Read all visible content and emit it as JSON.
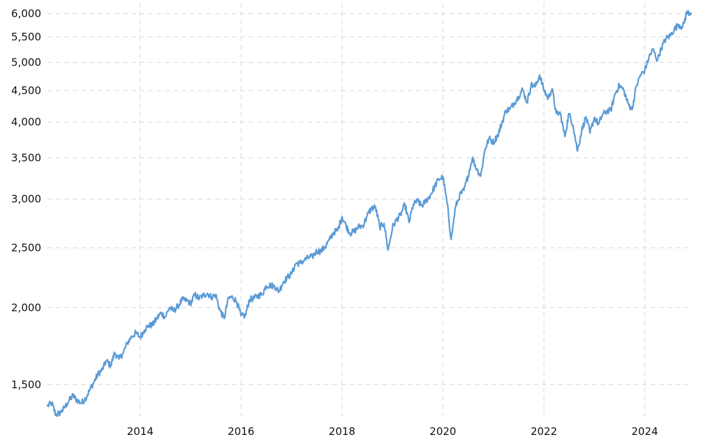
{
  "chart_data": {
    "type": "line",
    "title": "",
    "xlabel": "",
    "ylabel": "",
    "y_scale": "log",
    "grid": true,
    "legend": "none",
    "line_color": "#5b9bd5",
    "grid_color": "#d9d9d9",
    "xlim": [
      "2012-03-01",
      "2024-12-01"
    ],
    "ylim": [
      1330,
      6150
    ],
    "x_ticks": [
      {
        "value": "2014-01-01",
        "label": "2014"
      },
      {
        "value": "2016-01-01",
        "label": "2016"
      },
      {
        "value": "2018-01-01",
        "label": "2018"
      },
      {
        "value": "2020-01-01",
        "label": "2020"
      },
      {
        "value": "2022-01-01",
        "label": "2022"
      },
      {
        "value": "2024-01-01",
        "label": "2024"
      }
    ],
    "y_ticks": [
      {
        "value": 1500,
        "label": "1,500"
      },
      {
        "value": 2000,
        "label": "2,000"
      },
      {
        "value": 2500,
        "label": "2,500"
      },
      {
        "value": 3000,
        "label": "3,000"
      },
      {
        "value": 3500,
        "label": "3,500"
      },
      {
        "value": 4000,
        "label": "4,000"
      },
      {
        "value": 4500,
        "label": "4,500"
      },
      {
        "value": 5000,
        "label": "5,000"
      },
      {
        "value": 5500,
        "label": "5,500"
      },
      {
        "value": 6000,
        "label": "6,000"
      }
    ],
    "series": [
      {
        "x": [
          "2012-03-01",
          "2012-04-01",
          "2012-05-01",
          "2012-06-01",
          "2012-07-01",
          "2012-08-01",
          "2012-09-01",
          "2012-10-01",
          "2012-11-01",
          "2012-12-01",
          "2013-01-01",
          "2013-02-01",
          "2013-03-01",
          "2013-04-01",
          "2013-05-01",
          "2013-06-01",
          "2013-07-01",
          "2013-08-01",
          "2013-09-01",
          "2013-10-01",
          "2013-11-01",
          "2013-12-01",
          "2014-01-01",
          "2014-02-01",
          "2014-03-01",
          "2014-04-01",
          "2014-05-01",
          "2014-06-01",
          "2014-07-01",
          "2014-08-01",
          "2014-09-01",
          "2014-10-01",
          "2014-11-01",
          "2014-12-01",
          "2015-01-01",
          "2015-02-01",
          "2015-03-01",
          "2015-04-01",
          "2015-05-01",
          "2015-06-01",
          "2015-07-01",
          "2015-08-01",
          "2015-09-01",
          "2015-10-01",
          "2015-11-01",
          "2015-12-01",
          "2016-01-01",
          "2016-02-01",
          "2016-03-01",
          "2016-04-01",
          "2016-05-01",
          "2016-06-01",
          "2016-07-01",
          "2016-08-01",
          "2016-09-01",
          "2016-10-01",
          "2016-11-01",
          "2016-12-01",
          "2017-01-01",
          "2017-02-01",
          "2017-03-01",
          "2017-04-01",
          "2017-05-01",
          "2017-06-01",
          "2017-07-01",
          "2017-08-01",
          "2017-09-01",
          "2017-10-01",
          "2017-11-01",
          "2017-12-01",
          "2018-01-01",
          "2018-02-01",
          "2018-03-01",
          "2018-04-01",
          "2018-05-01",
          "2018-06-01",
          "2018-07-01",
          "2018-08-01",
          "2018-09-01",
          "2018-10-01",
          "2018-11-01",
          "2018-12-01",
          "2019-01-01",
          "2019-02-01",
          "2019-03-01",
          "2019-04-01",
          "2019-05-01",
          "2019-06-01",
          "2019-07-01",
          "2019-08-01",
          "2019-09-01",
          "2019-10-01",
          "2019-11-01",
          "2019-12-01",
          "2020-01-01",
          "2020-02-01",
          "2020-03-01",
          "2020-04-01",
          "2020-05-01",
          "2020-06-01",
          "2020-07-01",
          "2020-08-01",
          "2020-09-01",
          "2020-10-01",
          "2020-11-01",
          "2020-12-01",
          "2021-01-01",
          "2021-02-01",
          "2021-03-01",
          "2021-04-01",
          "2021-05-01",
          "2021-06-01",
          "2021-07-01",
          "2021-08-01",
          "2021-09-01",
          "2021-10-01",
          "2021-11-01",
          "2021-12-01",
          "2022-01-01",
          "2022-02-01",
          "2022-03-01",
          "2022-04-01",
          "2022-05-01",
          "2022-06-01",
          "2022-07-01",
          "2022-08-01",
          "2022-09-01",
          "2022-10-01",
          "2022-11-01",
          "2022-12-01",
          "2023-01-01",
          "2023-02-01",
          "2023-03-01",
          "2023-04-01",
          "2023-05-01",
          "2023-06-01",
          "2023-07-01",
          "2023-08-01",
          "2023-09-01",
          "2023-10-01",
          "2023-11-01",
          "2023-12-01",
          "2024-01-01",
          "2024-02-01",
          "2024-03-01",
          "2024-04-01",
          "2024-05-01",
          "2024-06-01",
          "2024-07-01",
          "2024-08-01",
          "2024-09-01",
          "2024-10-01",
          "2024-11-01",
          "2024-12-01"
        ],
        "y": [
          1385,
          1400,
          1340,
          1350,
          1375,
          1410,
          1440,
          1415,
          1400,
          1425,
          1470,
          1515,
          1560,
          1585,
          1640,
          1610,
          1690,
          1650,
          1690,
          1755,
          1795,
          1820,
          1790,
          1840,
          1870,
          1875,
          1920,
          1960,
          1930,
          2000,
          1975,
          2010,
          2060,
          2055,
          2030,
          2100,
          2070,
          2090,
          2110,
          2080,
          2100,
          1980,
          1920,
          2070,
          2080,
          2045,
          1940,
          1940,
          2060,
          2070,
          2090,
          2100,
          2170,
          2175,
          2165,
          2125,
          2200,
          2240,
          2270,
          2360,
          2360,
          2385,
          2410,
          2420,
          2470,
          2470,
          2510,
          2575,
          2650,
          2670,
          2810,
          2710,
          2640,
          2660,
          2705,
          2715,
          2815,
          2900,
          2910,
          2700,
          2740,
          2480,
          2700,
          2780,
          2830,
          2940,
          2750,
          2940,
          2980,
          2925,
          2980,
          3040,
          3140,
          3230,
          3260,
          2950,
          2580,
          2910,
          3040,
          3100,
          3270,
          3500,
          3360,
          3270,
          3620,
          3760,
          3710,
          3810,
          3970,
          4180,
          4200,
          4300,
          4400,
          4520,
          4300,
          4600,
          4570,
          4770,
          4510,
          4370,
          4530,
          4130,
          4130,
          3790,
          4130,
          3950,
          3590,
          3870,
          4080,
          3840,
          4070,
          3970,
          4110,
          4170,
          4180,
          4450,
          4590,
          4510,
          4290,
          4190,
          4570,
          4770,
          4850,
          5100,
          5250,
          5040,
          5280,
          5460,
          5520,
          5650,
          5760,
          5700,
          6030,
          6010
        ]
      }
    ]
  }
}
